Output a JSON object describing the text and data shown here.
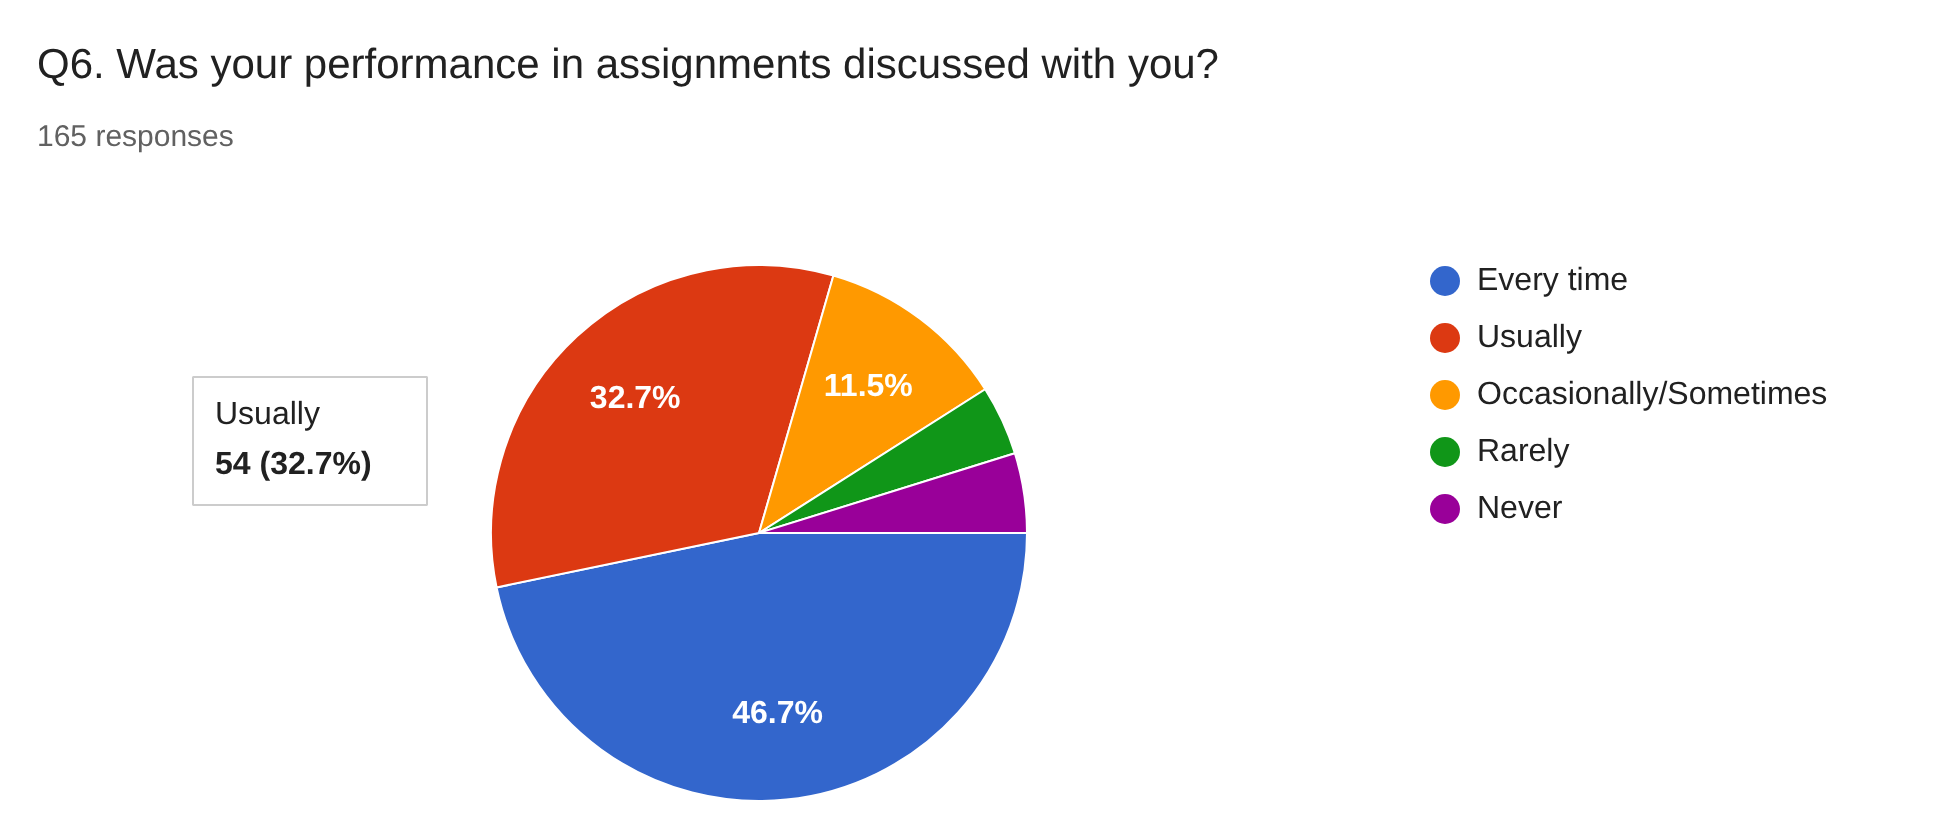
{
  "chart_data": {
    "type": "pie",
    "title": "Q6. Was your performance in assignments discussed with you?",
    "subtitle": "165 responses",
    "categories": [
      "Every time",
      "Usually",
      "Occasionally/Sometimes",
      "Rarely",
      "Never"
    ],
    "values": [
      46.7,
      32.7,
      11.5,
      4.2,
      4.8
    ],
    "colors": [
      "#3366cc",
      "#dc3912",
      "#ff9900",
      "#109618",
      "#990099"
    ],
    "value_labels": [
      "46.7%",
      "32.7%",
      "11.5%",
      null,
      null
    ],
    "annotations": [
      "Usually\n54 (32.7%)"
    ],
    "legend": "right"
  }
}
